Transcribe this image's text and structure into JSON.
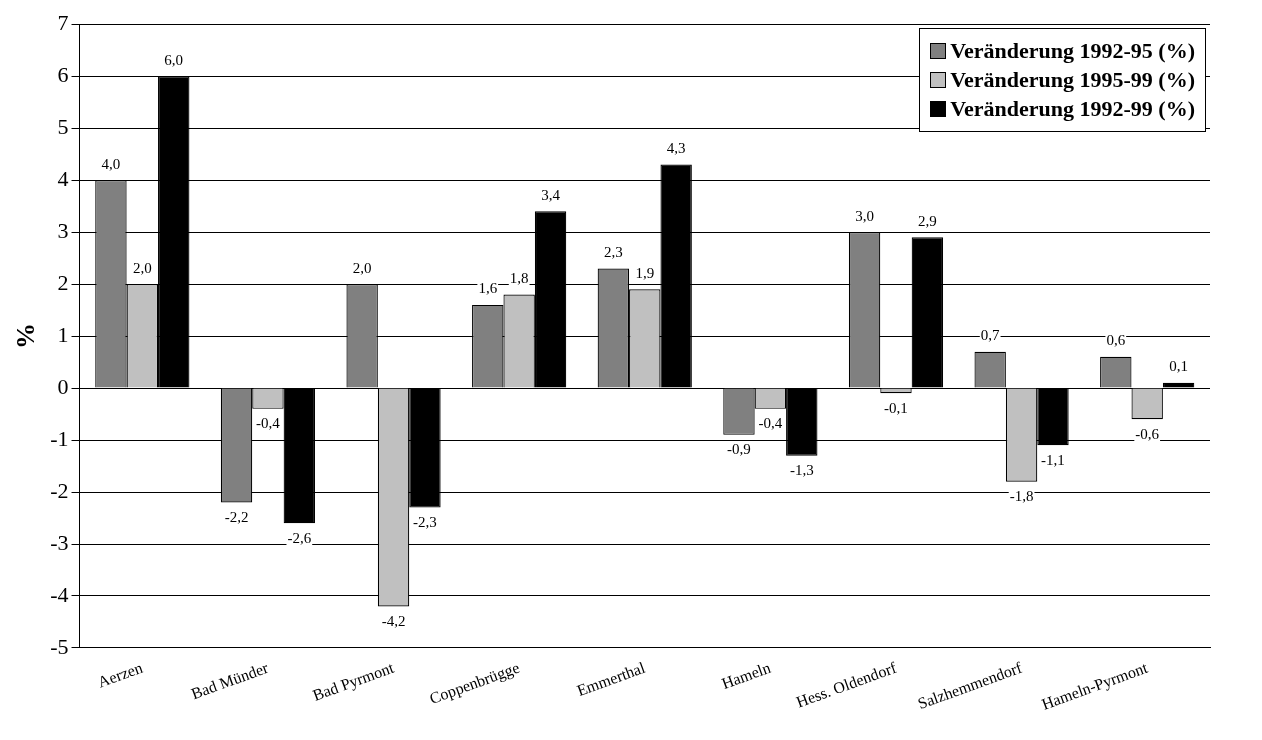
{
  "chart_data": {
    "type": "bar",
    "ylabel": "%",
    "categories": [
      "Aerzen",
      "Bad Münder",
      "Bad Pyrmont",
      "Coppenbrügge",
      "Emmerthal",
      "Hameln",
      "Hess. Oldendorf",
      "Salzhemmendorf",
      "Hameln-Pyrmont"
    ],
    "series": [
      {
        "name": "Veränderung 1992-95 (%)",
        "color": "#808080",
        "values": [
          4.0,
          -2.2,
          2.0,
          1.6,
          2.3,
          -0.9,
          3.0,
          0.7,
          0.6
        ],
        "value_labels": [
          "4,0",
          "-2,2",
          "2,0",
          "1,6",
          "2,3",
          "-0,9",
          "3,0",
          "0,7",
          "0,6"
        ]
      },
      {
        "name": "Veränderung 1995-99 (%)",
        "color": "#c0c0c0",
        "values": [
          2.0,
          -0.4,
          -4.2,
          1.8,
          1.9,
          -0.4,
          -0.1,
          -1.8,
          -0.6
        ],
        "value_labels": [
          "2,0",
          "-0,4",
          "-4,2",
          "1,8",
          "1,9",
          "-0,4",
          "-0,1",
          "-1,8",
          "-0,6"
        ]
      },
      {
        "name": "Veränderung 1992-99 (%)",
        "color": "#000000",
        "values": [
          6.0,
          -2.6,
          -2.3,
          3.4,
          4.3,
          -1.3,
          2.9,
          -1.1,
          0.1
        ],
        "value_labels": [
          "6,0",
          "-2,6",
          "-2,3",
          "3,4",
          "4,3",
          "-1,3",
          "2,9",
          "-1,1",
          "0,1"
        ]
      }
    ],
    "ylim": [
      -5,
      7
    ],
    "yticks": [
      -5,
      -4,
      -3,
      -2,
      -1,
      0,
      1,
      2,
      3,
      4,
      5,
      6,
      7
    ],
    "grid": "y",
    "legend": "top right"
  }
}
